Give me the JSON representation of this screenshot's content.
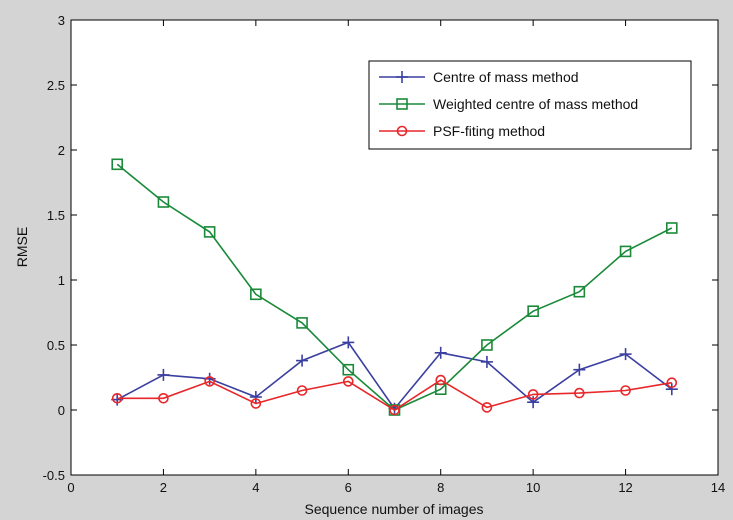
{
  "chart_data": {
    "type": "line",
    "title": "",
    "xlabel": "Sequence number of images",
    "ylabel": "RMSE",
    "xlim": [
      0,
      14
    ],
    "ylim": [
      -0.5,
      3
    ],
    "xticks": [
      0,
      2,
      4,
      6,
      8,
      10,
      12,
      14
    ],
    "yticks": [
      -0.5,
      0,
      0.5,
      1,
      1.5,
      2,
      2.5,
      3
    ],
    "xtick_labels": [
      "0",
      "2",
      "4",
      "6",
      "8",
      "10",
      "12",
      "14"
    ],
    "ytick_labels": [
      "-0.5",
      "0",
      "0.5",
      "1",
      "1.5",
      "2",
      "2.5",
      "3"
    ],
    "grid": false,
    "legend_position": "top-right",
    "x": [
      1,
      2,
      3,
      4,
      5,
      6,
      7,
      8,
      9,
      10,
      11,
      12,
      13
    ],
    "series": [
      {
        "name": "Centre of mass method",
        "color": "#3b3fa0",
        "marker": "plus",
        "values": [
          0.08,
          0.27,
          0.24,
          0.1,
          0.38,
          0.52,
          0.01,
          0.44,
          0.37,
          0.06,
          0.31,
          0.43,
          0.16
        ]
      },
      {
        "name": "Weighted centre of mass method",
        "color": "#1a8a3a",
        "marker": "square",
        "values": [
          1.89,
          1.6,
          1.37,
          0.89,
          0.67,
          0.31,
          0.0,
          0.16,
          0.5,
          0.76,
          0.91,
          1.22,
          1.4
        ]
      },
      {
        "name": "PSF-fiting method",
        "color": "#e8272a",
        "marker": "circle",
        "values": [
          0.09,
          0.09,
          0.22,
          0.05,
          0.15,
          0.22,
          0.0,
          0.23,
          0.02,
          0.12,
          0.13,
          0.15,
          0.21
        ]
      }
    ]
  }
}
